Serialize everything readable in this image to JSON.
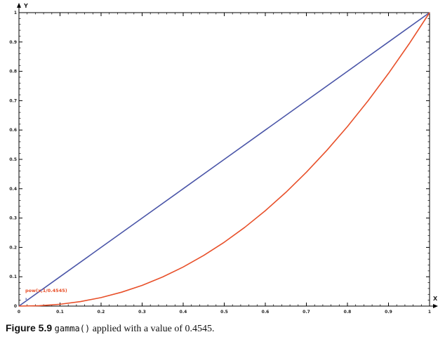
{
  "chart_data": {
    "type": "line",
    "xlabel": "X",
    "ylabel": "Y",
    "xlim": [
      0,
      1
    ],
    "ylim": [
      0,
      1
    ],
    "x_ticks": [
      "0",
      "0.1",
      "0.2",
      "0.3",
      "0.4",
      "0.5",
      "0.6",
      "0.7",
      "0.8",
      "0.9",
      "1"
    ],
    "y_ticks": [
      "0",
      "0.1",
      "0.2",
      "0.3",
      "0.4",
      "0.5",
      "0.6",
      "0.7",
      "0.8",
      "0.9",
      "1"
    ],
    "grid": false,
    "series": [
      {
        "name": "x",
        "color": "#4a55a8",
        "x": [
          0,
          0.1,
          0.2,
          0.3,
          0.4,
          0.5,
          0.6,
          0.7,
          0.8,
          0.9,
          1
        ],
        "y": [
          0,
          0.1,
          0.2,
          0.3,
          0.4,
          0.5,
          0.6,
          0.7,
          0.8,
          0.9,
          1
        ]
      },
      {
        "name": "pow(x,1/0.4545)",
        "color": "#e8502a",
        "x": [
          0,
          0.05,
          0.1,
          0.15,
          0.2,
          0.25,
          0.3,
          0.35,
          0.4,
          0.45,
          0.5,
          0.55,
          0.6,
          0.65,
          0.7,
          0.75,
          0.8,
          0.85,
          0.9,
          0.95,
          1
        ],
        "y": [
          0,
          0.0014,
          0.0063,
          0.0154,
          0.029,
          0.0474,
          0.0707,
          0.0993,
          0.1332,
          0.1726,
          0.2176,
          0.2684,
          0.325,
          0.3875,
          0.4561,
          0.5309,
          0.6119,
          0.6992,
          0.793,
          0.8932,
          1.0
        ]
      }
    ]
  },
  "caption": {
    "figure_label": "Figure 5.9",
    "code": "gamma()",
    "text": " applied with a value of 0.4545."
  }
}
